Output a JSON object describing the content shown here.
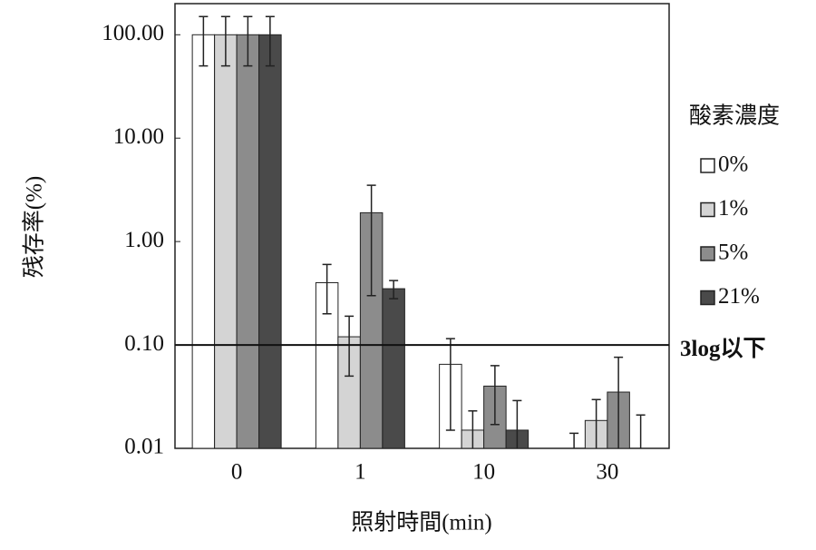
{
  "chart_data": {
    "type": "bar",
    "x_label": "照射時間(min)",
    "y_label": "残存率(%)",
    "legend_title": "酸素濃度",
    "categories": [
      "0",
      "1",
      "10",
      "30"
    ],
    "series": [
      {
        "name": "0%",
        "color": "#ffffff",
        "values": [
          100,
          0.4,
          0.065,
          0.01
        ],
        "errors": [
          50,
          0.2,
          0.05,
          0.004
        ]
      },
      {
        "name": "1%",
        "color": "#d4d4d4",
        "values": [
          100,
          0.12,
          0.015,
          0.0186
        ],
        "errors": [
          50,
          0.07,
          0.008,
          0.011
        ]
      },
      {
        "name": "5%",
        "color": "#8c8c8c",
        "values": [
          100,
          1.9,
          0.04,
          0.035
        ],
        "errors": [
          50,
          1.6,
          0.023,
          0.041
        ]
      },
      {
        "name": "21%",
        "color": "#4a4a4a",
        "values": [
          100,
          0.35,
          0.015,
          0.01
        ],
        "errors": [
          50,
          0.07,
          0.014,
          0.011
        ]
      }
    ],
    "log_scale": true,
    "ylim": [
      0.01,
      200
    ],
    "yticks": [
      {
        "value": 0.01,
        "label": "0.01"
      },
      {
        "value": 0.1,
        "label": "0.10"
      },
      {
        "value": 1,
        "label": "1.00"
      },
      {
        "value": 10,
        "label": "10.00"
      },
      {
        "value": 100,
        "label": "100.00"
      }
    ],
    "reference_lines": [
      {
        "value": 0.1,
        "label": "3log以下"
      }
    ],
    "legend_position": "right"
  }
}
